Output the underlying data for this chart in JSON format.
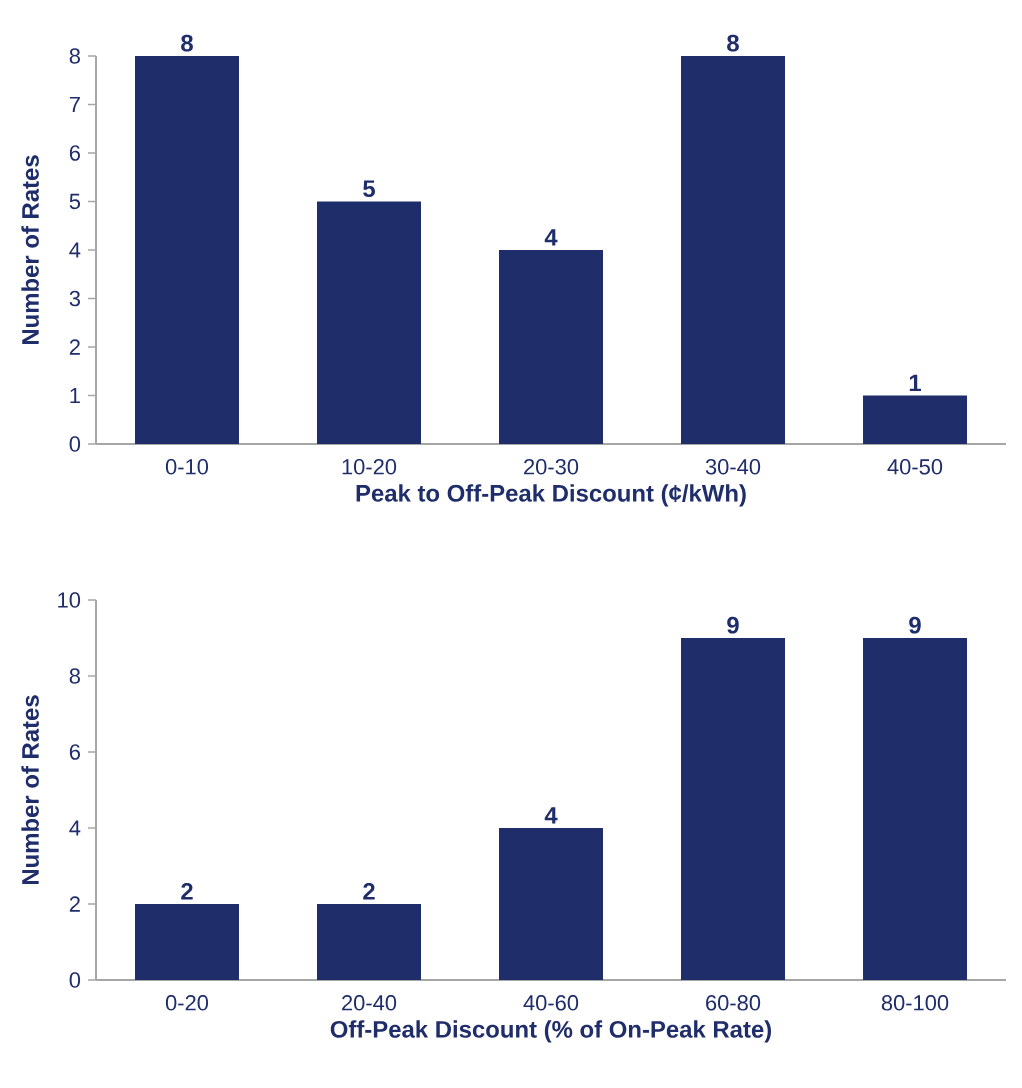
{
  "chart_data": [
    {
      "type": "bar",
      "xlabel": "Peak to Off-Peak Discount (¢/kWh)",
      "ylabel": "Number of Rates",
      "categories": [
        "0-10",
        "10-20",
        "20-30",
        "30-40",
        "40-50"
      ],
      "values": [
        8,
        5,
        4,
        8,
        1
      ],
      "color": "#1f2d6b",
      "ylim": [
        0,
        8
      ],
      "yticks": [
        0,
        1,
        2,
        3,
        4,
        5,
        6,
        7,
        8
      ],
      "data_labels": true
    },
    {
      "type": "bar",
      "xlabel": "Off-Peak Discount (% of On-Peak Rate)",
      "ylabel": "Number of Rates",
      "categories": [
        "0-20",
        "20-40",
        "40-60",
        "60-80",
        "80-100"
      ],
      "values": [
        2,
        2,
        4,
        9,
        9
      ],
      "color": "#1f2d6b",
      "ylim": [
        0,
        10
      ],
      "yticks": [
        0,
        2,
        4,
        6,
        8,
        10
      ],
      "data_labels": true
    }
  ]
}
